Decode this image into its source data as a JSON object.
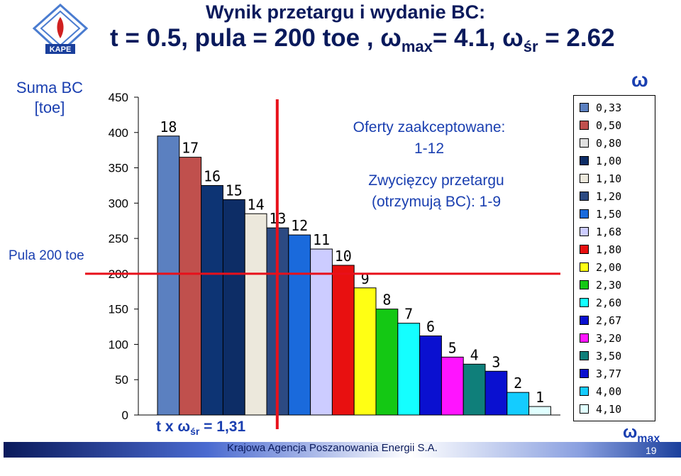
{
  "slide": {
    "title_line1": "Wynik przetargu i wydanie BC:",
    "title_line2_pre": "t = 0.5, pula = 200 toe , ω",
    "title_line2_sub1": "max",
    "title_line2_mid": "= 4.1, ω",
    "title_line2_sub2": "śr",
    "title_line2_post": " = 2.62",
    "logo_text": "KAPE",
    "footer": "Krajowa Agencja Poszanowania Energii S.A.",
    "page_number": "19",
    "colors": {
      "primary_text": "#1a3fb0",
      "title_text": "#0a1a5c",
      "marker_line": "#e8101a"
    }
  },
  "chart_data": {
    "type": "bar",
    "ylabel": "Suma BC [toe]",
    "ylim": [
      0,
      450
    ],
    "yticks": [
      "0",
      "50",
      "100",
      "150",
      "200",
      "250",
      "300",
      "350",
      "400",
      "450"
    ],
    "categories": [
      "18",
      "17",
      "16",
      "15",
      "14",
      "13",
      "12",
      "11",
      "10",
      "9",
      "8",
      "7",
      "6",
      "5",
      "4",
      "3",
      "2",
      "1"
    ],
    "values": [
      395,
      365,
      325,
      305,
      285,
      265,
      255,
      235,
      212,
      180,
      150,
      130,
      112,
      82,
      72,
      62,
      32,
      12
    ],
    "colors": [
      "#5b80c0",
      "#c0504d",
      "#0d3474",
      "#0d2d66",
      "#ece8dc",
      "#2c4a82",
      "#1a6adc",
      "#ccccff",
      "#e81010",
      "#ffff14",
      "#14c814",
      "#14ffff",
      "#0a10d0",
      "#ff14ff",
      "#0f7f7a",
      "#0a10d0",
      "#14ccff",
      "#e0ffff"
    ],
    "hline": {
      "value": 200,
      "label": "Pula 200 toe"
    },
    "vline_after_category": "13",
    "annotations": {
      "accepted": "Oferty zaakceptowane:\n1-12",
      "winners": "Zwycięzcy przetargu\n(otrzymują BC): 1-9",
      "formula_pre": "t x ω",
      "formula_sub": "śr",
      "formula_post": " = 1,31"
    },
    "legend": {
      "title": "ω",
      "bottom_label_pre": "ω",
      "bottom_label_sub": "max",
      "entries": [
        "0,33",
        "0,50",
        "0,80",
        "1,00",
        "1,10",
        "1,20",
        "1,50",
        "1,68",
        "1,80",
        "2,00",
        "2,30",
        "2,60",
        "2,67",
        "3,20",
        "3,50",
        "3,77",
        "4,00",
        "4,10"
      ],
      "colors": [
        "#5b80c0",
        "#c0504d",
        "#e0e0e0",
        "#0d2d66",
        "#ece8dc",
        "#2c4a82",
        "#1a6adc",
        "#ccccff",
        "#e81010",
        "#ffff14",
        "#14c814",
        "#14ffff",
        "#0a10d0",
        "#ff14ff",
        "#0f7f7a",
        "#0a10d0",
        "#14ccff",
        "#e0ffff"
      ]
    }
  }
}
